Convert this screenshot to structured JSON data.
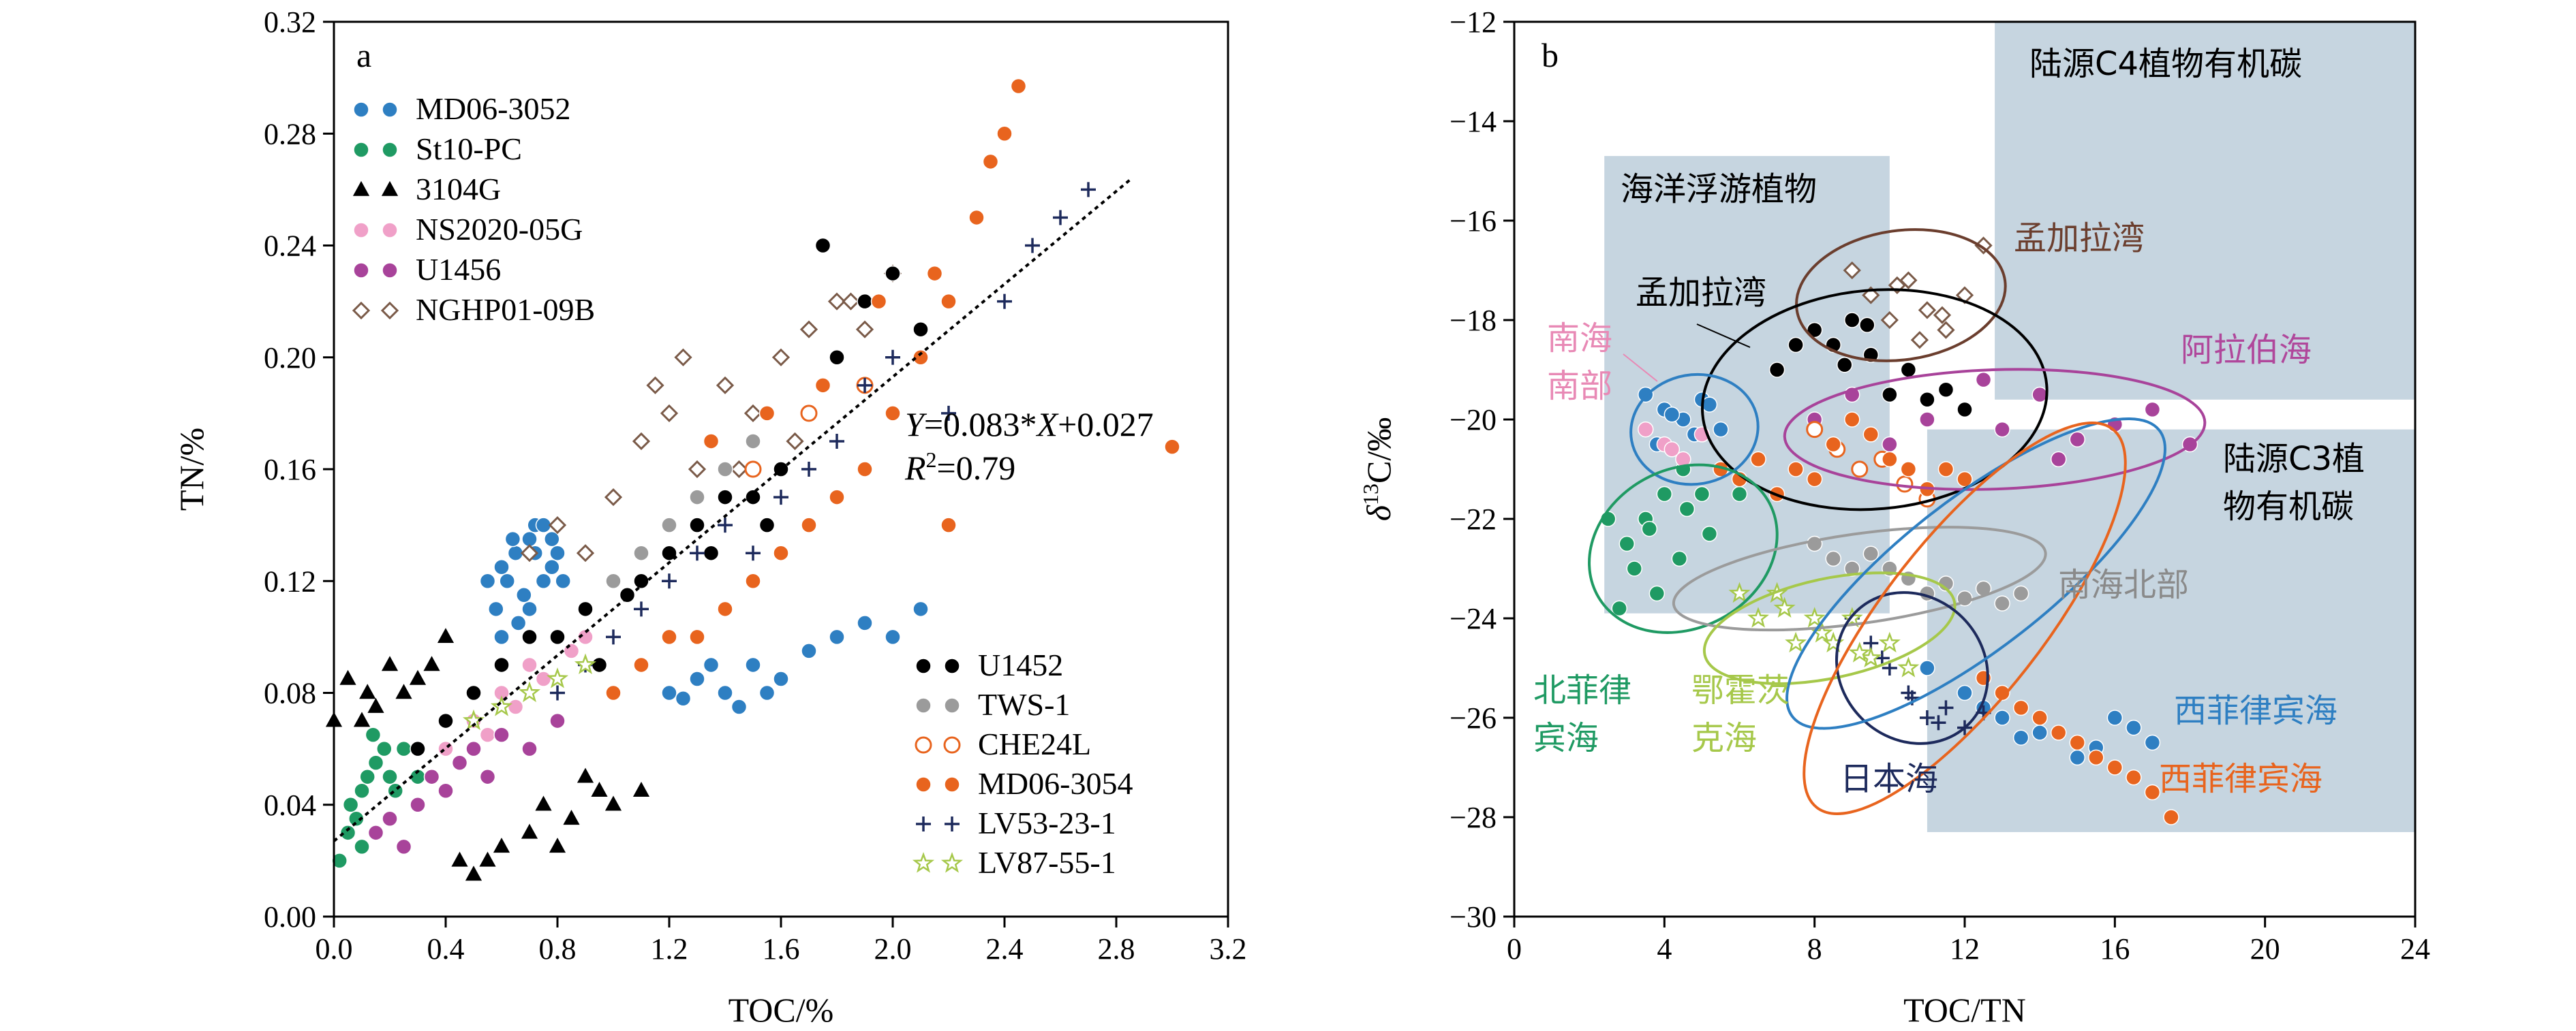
{
  "panel_a": {
    "label": "a",
    "xlabel": "TOC/%",
    "ylabel": "TN/%",
    "xticks": [
      "0.0",
      "0.4",
      "0.8",
      "1.2",
      "1.6",
      "2.0",
      "2.4",
      "2.8",
      "3.2"
    ],
    "yticks": [
      "0.00",
      "0.04",
      "0.08",
      "0.12",
      "0.16",
      "0.20",
      "0.24",
      "0.28",
      "0.32"
    ],
    "eq_line1_y": "Y",
    "eq_line1_mid": "=0.083*",
    "eq_line1_x": "X",
    "eq_line1_rest": "+0.027",
    "eq_line2_r": "R",
    "eq_line2_sup": "2",
    "eq_line2_rest": "=0.79",
    "legend_left": [
      "MD06-3052",
      "St10-PC",
      "3104G",
      "NS2020-05G",
      "U1456",
      "NGHP01-09B"
    ],
    "legend_right": [
      "U1452",
      "TWS-1",
      "CHE24L",
      "MD06-3054",
      "LV53-23-1",
      "LV87-55-1"
    ]
  },
  "panel_b": {
    "label": "b",
    "xlabel": "TOC/TN",
    "ylabel_delta": "δ",
    "ylabel_sup": "13",
    "ylabel_rest": "C/‰",
    "xticks": [
      "0",
      "4",
      "8",
      "12",
      "16",
      "20",
      "24"
    ],
    "yticks": [
      "−12",
      "−14",
      "−16",
      "−18",
      "−20",
      "−22",
      "−24",
      "−26",
      "−28",
      "−30"
    ],
    "regions": {
      "c4": "陆源C4植物有机碳",
      "plankton": "海洋浮游植物",
      "c3_line1": "陆源C3植",
      "c3_line2": "物有机碳"
    },
    "labels": {
      "bengal_brown": "孟加拉湾",
      "bengal_black": "孟加拉湾",
      "arabian": "阿拉伯海",
      "scs_south_1": "南海",
      "scs_south_2": "南部",
      "scs_north": "南海北部",
      "nphil_1": "北菲律",
      "nphil_2": "宾海",
      "okhotsk_1": "鄂霍茨",
      "okhotsk_2": "克海",
      "japan": "日本海",
      "wphil_blue": "西菲律宾海",
      "wphil_orange": "西菲律宾海"
    }
  },
  "colors": {
    "MD06-3052": "#2e7fc2",
    "St10-PC": "#1f9a63",
    "3104G": "#000000",
    "NS2020-05G": "#f0a0c8",
    "U1456": "#a8439a",
    "NGHP01-09B": "#7a5a48",
    "U1452": "#000000",
    "TWS-1": "#9b9b9b",
    "CHE24L": "#e8641e",
    "MD06-3054": "#e8641e",
    "LV53-23-1": "#1d2a5c",
    "LV87-55-1": "#a6c84a",
    "region_fill": "#c6d5e0",
    "brown_label": "#6b3e2e",
    "arabian_label": "#b0479b",
    "scs_south_label": "#e889b5",
    "scs_north_label": "#8a8a8a",
    "nphil_label": "#1f9a63",
    "okhotsk_label": "#a6c84a",
    "japan_label": "#1d2a5c",
    "wphil_blue_label": "#2e7fc2",
    "wphil_orange_label": "#e8641e"
  },
  "chart_data": [
    {
      "type": "scatter",
      "panel": "a",
      "xlabel": "TOC/%",
      "ylabel": "TN/%",
      "xlim": [
        0.0,
        3.2
      ],
      "ylim": [
        0.0,
        0.32
      ],
      "regression": {
        "slope": 0.083,
        "intercept": 0.027,
        "r2": 0.79,
        "x_range": [
          0.0,
          2.85
        ]
      },
      "series": [
        {
          "name": "MD06-3052",
          "x": [
            0.55,
            0.6,
            0.65,
            0.7,
            0.72,
            0.75,
            0.78,
            0.8,
            0.82,
            0.7,
            0.68,
            0.62,
            0.58,
            0.75,
            0.8,
            0.66,
            0.72,
            0.78,
            0.64,
            0.6,
            1.2,
            1.3,
            1.4,
            1.5,
            1.6,
            1.7,
            1.8,
            1.9,
            2.0,
            2.1,
            1.45,
            1.55,
            1.35,
            1.25
          ],
          "y": [
            0.12,
            0.125,
            0.13,
            0.135,
            0.14,
            0.14,
            0.135,
            0.13,
            0.12,
            0.11,
            0.115,
            0.12,
            0.11,
            0.12,
            0.1,
            0.105,
            0.13,
            0.125,
            0.135,
            0.1,
            0.08,
            0.085,
            0.08,
            0.09,
            0.085,
            0.095,
            0.1,
            0.105,
            0.1,
            0.11,
            0.075,
            0.08,
            0.09,
            0.078
          ]
        },
        {
          "name": "St10-PC",
          "x": [
            0.02,
            0.05,
            0.08,
            0.1,
            0.12,
            0.15,
            0.18,
            0.2,
            0.22,
            0.25,
            0.06,
            0.1,
            0.14,
            0.2,
            0.3
          ],
          "y": [
            0.02,
            0.03,
            0.035,
            0.045,
            0.05,
            0.055,
            0.06,
            0.05,
            0.045,
            0.06,
            0.04,
            0.025,
            0.065,
            0.035,
            0.05
          ]
        },
        {
          "name": "3104G",
          "x": [
            0.0,
            0.05,
            0.1,
            0.12,
            0.15,
            0.2,
            0.25,
            0.3,
            0.35,
            0.4,
            0.45,
            0.5,
            0.55,
            0.6,
            0.7,
            0.75,
            0.8,
            0.85,
            0.9,
            0.95,
            1.0,
            1.1
          ],
          "y": [
            0.07,
            0.085,
            0.07,
            0.08,
            0.075,
            0.09,
            0.08,
            0.085,
            0.09,
            0.1,
            0.02,
            0.015,
            0.02,
            0.025,
            0.03,
            0.04,
            0.025,
            0.035,
            0.05,
            0.045,
            0.04,
            0.045
          ]
        },
        {
          "name": "NS2020-05G",
          "x": [
            0.4,
            0.5,
            0.6,
            0.7,
            0.8,
            0.9,
            0.55,
            0.65,
            0.75,
            0.85
          ],
          "y": [
            0.06,
            0.07,
            0.08,
            0.09,
            0.1,
            0.1,
            0.065,
            0.075,
            0.085,
            0.095
          ]
        },
        {
          "name": "U1456",
          "x": [
            0.15,
            0.2,
            0.25,
            0.3,
            0.35,
            0.4,
            0.45,
            0.5,
            0.55,
            0.6,
            0.7,
            0.8
          ],
          "y": [
            0.03,
            0.035,
            0.025,
            0.04,
            0.05,
            0.045,
            0.055,
            0.06,
            0.05,
            0.065,
            0.06,
            0.07
          ]
        },
        {
          "name": "NGHP01-09B",
          "x": [
            0.7,
            0.8,
            0.9,
            1.0,
            1.1,
            1.2,
            1.3,
            1.4,
            1.5,
            1.6,
            1.7,
            1.8,
            1.9,
            2.0,
            1.15,
            1.25,
            1.45,
            1.65,
            1.85
          ],
          "y": [
            0.13,
            0.14,
            0.13,
            0.15,
            0.17,
            0.18,
            0.16,
            0.19,
            0.18,
            0.2,
            0.21,
            0.22,
            0.21,
            0.23,
            0.19,
            0.2,
            0.16,
            0.17,
            0.22
          ]
        },
        {
          "name": "U1452",
          "x": [
            0.3,
            0.4,
            0.5,
            0.6,
            0.7,
            0.8,
            0.9,
            1.0,
            1.1,
            1.2,
            1.3,
            1.4,
            1.5,
            1.6,
            1.7,
            1.8,
            1.9,
            2.0,
            2.1,
            1.35,
            1.55,
            1.75,
            0.95,
            1.05
          ],
          "y": [
            0.06,
            0.07,
            0.08,
            0.09,
            0.1,
            0.1,
            0.11,
            0.12,
            0.12,
            0.13,
            0.14,
            0.15,
            0.15,
            0.16,
            0.18,
            0.2,
            0.22,
            0.23,
            0.21,
            0.13,
            0.14,
            0.24,
            0.09,
            0.115
          ]
        },
        {
          "name": "TWS-1",
          "x": [
            1.0,
            1.1,
            1.2,
            1.3,
            1.4,
            1.5
          ],
          "y": [
            0.12,
            0.13,
            0.14,
            0.15,
            0.16,
            0.17
          ]
        },
        {
          "name": "CHE24L",
          "x": [
            1.5,
            1.7,
            1.9
          ],
          "y": [
            0.16,
            0.18,
            0.19
          ]
        },
        {
          "name": "MD06-3054",
          "x": [
            1.0,
            1.1,
            1.2,
            1.3,
            1.4,
            1.5,
            1.6,
            1.7,
            1.8,
            1.9,
            2.0,
            2.1,
            2.2,
            2.3,
            2.4,
            2.45,
            2.2,
            2.35,
            3.0,
            1.35,
            1.55,
            1.75,
            1.95,
            2.15
          ],
          "y": [
            0.08,
            0.09,
            0.1,
            0.1,
            0.11,
            0.12,
            0.13,
            0.14,
            0.15,
            0.16,
            0.18,
            0.2,
            0.22,
            0.25,
            0.28,
            0.297,
            0.14,
            0.27,
            0.168,
            0.17,
            0.18,
            0.19,
            0.22,
            0.23
          ]
        },
        {
          "name": "LV53-23-1",
          "x": [
            0.8,
            0.9,
            1.0,
            1.1,
            1.2,
            1.3,
            1.4,
            1.5,
            1.6,
            1.7,
            1.8,
            1.9,
            2.0,
            2.2,
            2.4,
            2.5,
            2.6,
            2.7
          ],
          "y": [
            0.08,
            0.09,
            0.1,
            0.11,
            0.12,
            0.13,
            0.14,
            0.13,
            0.15,
            0.16,
            0.17,
            0.19,
            0.2,
            0.18,
            0.22,
            0.24,
            0.25,
            0.26
          ]
        },
        {
          "name": "LV87-55-1",
          "x": [
            0.5,
            0.6,
            0.7,
            0.8,
            0.9
          ],
          "y": [
            0.07,
            0.075,
            0.08,
            0.085,
            0.09
          ]
        }
      ]
    },
    {
      "type": "scatter",
      "panel": "b",
      "xlabel": "TOC/TN",
      "ylabel": "δ13C/‰",
      "xlim": [
        0,
        24
      ],
      "ylim": [
        -30,
        -12
      ],
      "series": [
        {
          "name": "MD06-3052",
          "x": [
            3.5,
            4,
            4.5,
            5,
            5.5,
            4.2,
            4.8,
            5.2,
            3.8,
            11,
            12,
            13,
            14,
            15,
            16,
            17,
            16.5,
            15.5,
            12.5,
            13.5
          ],
          "y": [
            -19.5,
            -19.8,
            -20,
            -19.6,
            -20.2,
            -19.9,
            -20.3,
            -19.7,
            -20.5,
            -25,
            -25.5,
            -26,
            -26.3,
            -26.8,
            -26,
            -26.5,
            -26.2,
            -26.6,
            -25.8,
            -26.4
          ]
        },
        {
          "name": "St10-PC",
          "x": [
            2.5,
            3,
            3.5,
            4,
            4.5,
            5,
            5.5,
            6,
            3.2,
            3.8,
            4.4,
            5.2,
            2.8,
            3.6,
            4.6
          ],
          "y": [
            -22,
            -22.5,
            -22,
            -21.5,
            -21,
            -21.5,
            -21,
            -21.5,
            -23,
            -23.5,
            -22.8,
            -22.3,
            -23.8,
            -22.2,
            -21.8
          ]
        },
        {
          "name": "NS2020-05G",
          "x": [
            3.5,
            4,
            4.5,
            5,
            4.2
          ],
          "y": [
            -20.2,
            -20.5,
            -20.8,
            -20.3,
            -20.6
          ]
        },
        {
          "name": "U1456",
          "x": [
            8,
            9,
            10,
            11,
            12,
            13,
            14,
            15,
            16,
            17,
            18,
            14.5,
            12.5
          ],
          "y": [
            -20,
            -19.5,
            -20.5,
            -20,
            -19.8,
            -20.2,
            -19.5,
            -20.4,
            -20.1,
            -19.8,
            -20.5,
            -20.8,
            -19.2
          ]
        },
        {
          "name": "NGHP01-09B",
          "x": [
            9,
            9.5,
            10,
            10.5,
            11,
            11.5,
            12,
            12.5,
            10.2,
            10.8,
            11.4
          ],
          "y": [
            -17,
            -17.5,
            -18,
            -17.2,
            -17.8,
            -18.2,
            -17.5,
            -16.5,
            -17.3,
            -18.4,
            -17.9
          ]
        },
        {
          "name": "U1452",
          "x": [
            7,
            7.5,
            8,
            8.5,
            9,
            9.5,
            10,
            10.5,
            11,
            11.5,
            12,
            8.8,
            9.4
          ],
          "y": [
            -19,
            -18.5,
            -18.2,
            -18.5,
            -18,
            -18.7,
            -19.5,
            -19,
            -19.6,
            -19.4,
            -19.8,
            -18.9,
            -18.1
          ]
        },
        {
          "name": "TWS-1",
          "x": [
            8,
            8.5,
            9,
            9.5,
            10,
            10.5,
            11,
            11.5,
            12,
            12.5,
            13,
            13.5
          ],
          "y": [
            -22.5,
            -22.8,
            -23,
            -22.7,
            -23,
            -23.2,
            -23.5,
            -23.3,
            -23.6,
            -23.4,
            -23.7,
            -23.5
          ]
        },
        {
          "name": "CHE24L",
          "x": [
            8,
            8.6,
            9.2,
            9.8,
            10.4,
            11
          ],
          "y": [
            -20.2,
            -20.6,
            -21,
            -20.8,
            -21.3,
            -21.6
          ]
        },
        {
          "name": "MD06-3054",
          "x": [
            5.5,
            6,
            6.5,
            7,
            7.5,
            8,
            8.5,
            9,
            9.5,
            10,
            10.5,
            11,
            11.5,
            12,
            13,
            14,
            15,
            16,
            17,
            17.5,
            12.5,
            13.5,
            14.5,
            15.5,
            16.5
          ],
          "y": [
            -21,
            -21.2,
            -20.8,
            -21.5,
            -21,
            -21.2,
            -20.5,
            -20,
            -20.3,
            -20.8,
            -21,
            -21.4,
            -21,
            -21.2,
            -25.5,
            -26,
            -26.5,
            -27,
            -27.5,
            -28,
            -25.2,
            -25.8,
            -26.3,
            -26.8,
            -27.2
          ]
        },
        {
          "name": "LV53-23-1",
          "x": [
            9,
            9.5,
            10,
            10.5,
            11,
            11.5,
            12,
            12.5,
            9.8,
            10.6,
            11.3
          ],
          "y": [
            -24,
            -24.5,
            -25,
            -25.5,
            -26,
            -25.8,
            -26.2,
            -25.9,
            -24.8,
            -25.6,
            -26.1
          ]
        },
        {
          "name": "LV87-55-1",
          "x": [
            6,
            6.5,
            7,
            7.5,
            8,
            8.5,
            9,
            9.5,
            10,
            10.5,
            7.2,
            8.2,
            9.2
          ],
          "y": [
            -23.5,
            -24,
            -23.5,
            -24.5,
            -24,
            -24.5,
            -24,
            -24.8,
            -24.5,
            -25,
            -23.8,
            -24.3,
            -24.7
          ]
        }
      ]
    }
  ]
}
